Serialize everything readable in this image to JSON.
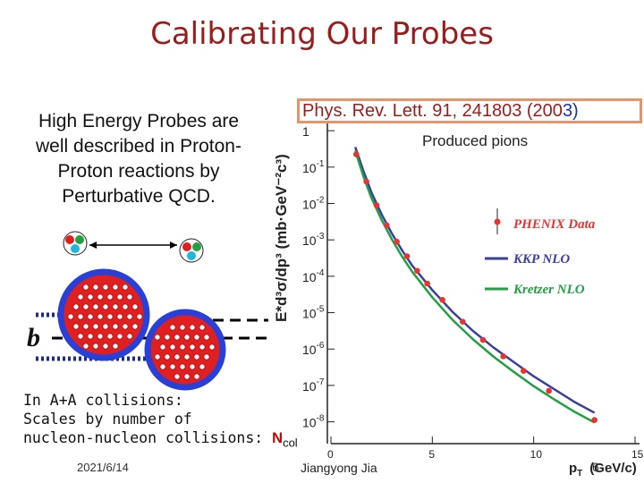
{
  "slide": {
    "title": "Calibrating Our Probes",
    "description_lines": [
      "High Energy Probes are",
      "well described in Proton-",
      "Proton reactions by",
      "Perturbative QCD."
    ],
    "aa_lines": [
      "In A+A collisions:",
      "Scales by number of",
      "nucleon-nucleon collisions: "
    ],
    "ncoll_main": "N",
    "ncoll_sub": "coll",
    "date": "2021/6/14",
    "author": "Jiangyong Jia",
    "page_number": "6",
    "reference_main": "Phys. Rev. Lett. 91, 241803 (200",
    "reference_blue": "3)",
    "impact_label": "b"
  },
  "chart_data": {
    "type": "scatter",
    "subtitle": "Produced pions",
    "ylabel": "E*d³σ/dp³ (mb·GeV⁻²c³)",
    "xlabel": "p",
    "xlabel_sub": "T",
    "xlabel_units": "(GeV/c)",
    "x_ticks": [
      "0",
      "5",
      "10",
      "15"
    ],
    "y_ticks": [
      "1",
      "10",
      "10",
      "10",
      "10",
      "10",
      "10",
      "10",
      "10"
    ],
    "y_exps": [
      "",
      "-1",
      "-2",
      "-3",
      "-4",
      "-5",
      "-6",
      "-7",
      "-8"
    ],
    "xlim": [
      0,
      15
    ],
    "ylim_log10": [
      -8.6,
      0.2
    ],
    "legend": [
      {
        "label": "PHENIX Data",
        "color": "#e83333"
      },
      {
        "label": "KKP NLO",
        "color": "#3a3f9e"
      },
      {
        "label": "Kretzer NLO",
        "color": "#20a040"
      }
    ],
    "series": [
      {
        "name": "PHENIX Data",
        "x": [
          1.25,
          1.75,
          2.25,
          2.75,
          3.25,
          3.75,
          4.25,
          4.75,
          5.5,
          6.5,
          7.5,
          8.5,
          9.5,
          10.75,
          13.0
        ],
        "log10y": [
          -0.65,
          -1.4,
          -2.05,
          -2.6,
          -3.05,
          -3.45,
          -3.85,
          -4.2,
          -4.65,
          -5.25,
          -5.75,
          -6.2,
          -6.6,
          -7.15,
          -7.95
        ]
      },
      {
        "name": "KKP NLO",
        "x": [
          1.2,
          1.6,
          2,
          2.5,
          3,
          3.5,
          4,
          5,
          6,
          7,
          8,
          9,
          10,
          11,
          12,
          13
        ],
        "log10y": [
          -0.45,
          -1.1,
          -1.7,
          -2.3,
          -2.82,
          -3.28,
          -3.7,
          -4.38,
          -4.98,
          -5.5,
          -5.95,
          -6.35,
          -6.75,
          -7.1,
          -7.45,
          -7.75
        ]
      },
      {
        "name": "Kretzer NLO",
        "x": [
          1.2,
          1.6,
          2,
          2.5,
          3,
          3.5,
          4,
          5,
          6,
          7,
          8,
          9,
          10,
          11,
          12,
          13
        ],
        "log10y": [
          -0.55,
          -1.25,
          -1.85,
          -2.45,
          -2.98,
          -3.45,
          -3.87,
          -4.58,
          -5.2,
          -5.73,
          -6.2,
          -6.62,
          -7.02,
          -7.38,
          -7.72,
          -8.02
        ]
      }
    ]
  },
  "colors": {
    "title": "#9b1b1b",
    "nucleon": "#e02020",
    "nucleus_ring": "#2840d8",
    "ref_border": "#e6946a"
  }
}
